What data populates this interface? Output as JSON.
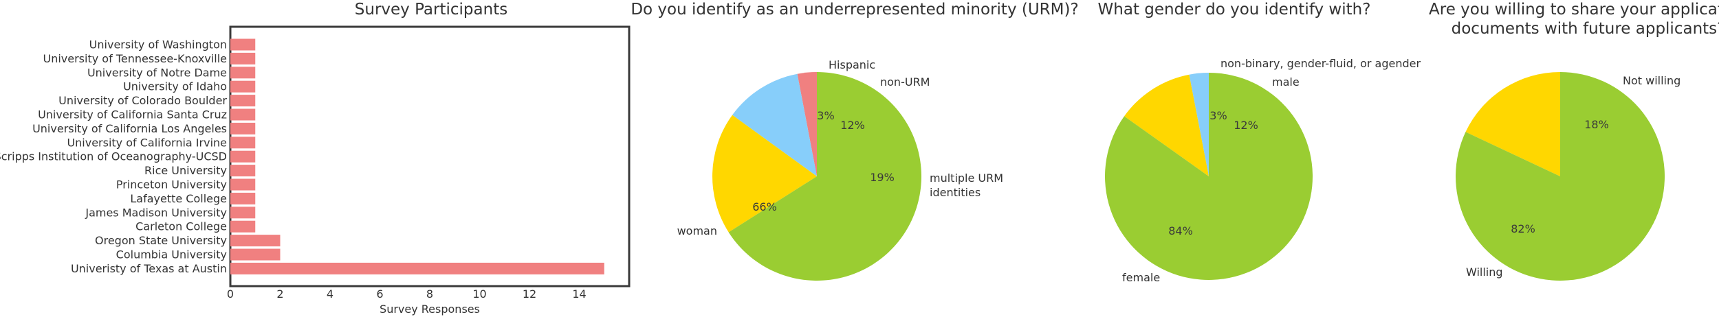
{
  "chart_data": [
    {
      "type": "bar",
      "orientation": "horizontal",
      "title": "Survey Participants",
      "xlabel": "Survey Responses",
      "ylabel": "",
      "xlim": [
        0,
        16
      ],
      "xticks": [
        0,
        2,
        4,
        6,
        8,
        10,
        12,
        14
      ],
      "categories": [
        "University of Washington",
        "University of Tennessee-Knoxville",
        "University of Notre Dame",
        "University of Idaho",
        "University of Colorado Boulder",
        "University of California Santa Cruz",
        "University of California Los Angeles",
        "University of California Irvine",
        "Scripps Institution of Oceanography-UCSD",
        "Rice University",
        "Princeton University",
        "Lafayette College",
        "James Madison University",
        "Carleton College",
        "Oregon State University",
        "Columbia University",
        "Univeristy of Texas at Austin"
      ],
      "values": [
        1,
        1,
        1,
        1,
        1,
        1,
        1,
        1,
        1,
        1,
        1,
        1,
        1,
        1,
        2,
        2,
        15
      ],
      "color": "#f08080",
      "grid": false
    },
    {
      "type": "pie",
      "title": "Do you identify as an underrepresented minority (URM)?",
      "slices": [
        {
          "label": "Hispanic",
          "value": 3,
          "pct_label": "3%",
          "color": "#f08080"
        },
        {
          "label": "non-URM",
          "value": 12,
          "pct_label": "12%",
          "color": "#87cefa"
        },
        {
          "label": "multiple URM identities",
          "value": 19,
          "pct_label": "19%",
          "color": "#ffd700"
        },
        {
          "label": "woman",
          "value": 66,
          "pct_label": "66%",
          "color": "#9acd32"
        }
      ]
    },
    {
      "type": "pie",
      "title": "What gender do you identify with?",
      "slices": [
        {
          "label": "non-binary, gender-fluid, or agender",
          "value": 3,
          "pct_label": "3%",
          "color": "#87cefa"
        },
        {
          "label": "male",
          "value": 12,
          "pct_label": "12%",
          "color": "#ffd700"
        },
        {
          "label": "female",
          "value": 84,
          "pct_label": "84%",
          "color": "#9acd32"
        }
      ]
    },
    {
      "type": "pie",
      "title": "Are you willing to share your application documents with future applicants?",
      "title_lines": [
        "Are you willing to share your application",
        "documents with future applicants?"
      ],
      "slices": [
        {
          "label": "Not willing",
          "value": 18,
          "pct_label": "18%",
          "color": "#ffd700"
        },
        {
          "label": "Willing",
          "value": 82,
          "pct_label": "82%",
          "color": "#9acd32"
        }
      ]
    }
  ]
}
